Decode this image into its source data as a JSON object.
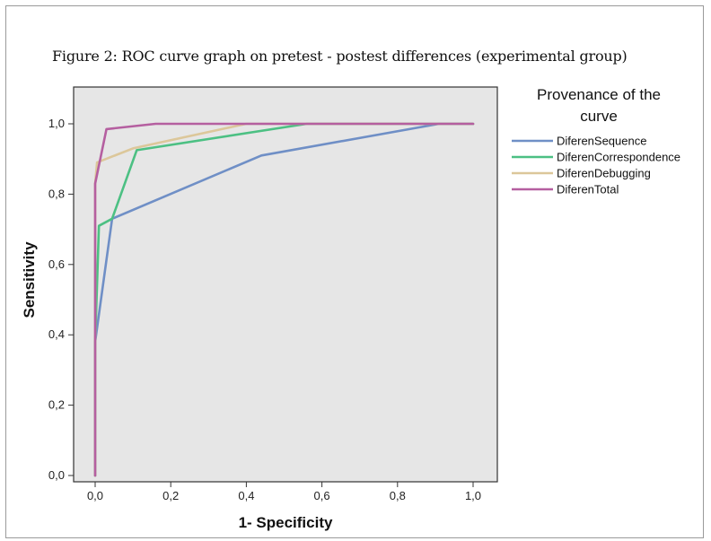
{
  "figure_title": "Figure 2: ROC curve graph on pretest - postest differences (experimental group)",
  "chart_data": {
    "type": "line",
    "title": "",
    "xlabel": "1- Specificity",
    "ylabel": "Sensitivity",
    "xlim": [
      0,
      1
    ],
    "ylim": [
      0,
      1
    ],
    "plot_background": "#e6e6e6",
    "grid": false,
    "x_ticks": [
      "0,0",
      "0,2",
      "0,4",
      "0,6",
      "0,8",
      "1,0"
    ],
    "y_ticks": [
      "0,0",
      "0,2",
      "0,4",
      "0,6",
      "0,8",
      "1,0"
    ],
    "legend": {
      "title_line1": "Provenance of the",
      "title_line2": "curve",
      "placement": "right"
    },
    "series": [
      {
        "name": "DiferenSequence",
        "color": "#6f8fc6",
        "points": [
          [
            0,
            0
          ],
          [
            0,
            0.38
          ],
          [
            0.045,
            0.73
          ],
          [
            0.44,
            0.91
          ],
          [
            0.91,
            1.0
          ],
          [
            1.0,
            1.0
          ]
        ]
      },
      {
        "name": "DiferenCorrespondence",
        "color": "#4cc083",
        "points": [
          [
            0,
            0
          ],
          [
            0,
            0.38
          ],
          [
            0.01,
            0.71
          ],
          [
            0.045,
            0.73
          ],
          [
            0.11,
            0.925
          ],
          [
            0.56,
            1.0
          ],
          [
            1.0,
            1.0
          ]
        ]
      },
      {
        "name": "DiferenDebugging",
        "color": "#dcc79a",
        "points": [
          [
            0,
            0
          ],
          [
            0,
            0.83
          ],
          [
            0.005,
            0.89
          ],
          [
            0.1,
            0.93
          ],
          [
            0.4,
            1.0
          ],
          [
            1.0,
            1.0
          ]
        ]
      },
      {
        "name": "DiferenTotal",
        "color": "#b55fa0",
        "points": [
          [
            0,
            0
          ],
          [
            0,
            0.83
          ],
          [
            0.03,
            0.985
          ],
          [
            0.16,
            1.0
          ],
          [
            1.0,
            1.0
          ]
        ]
      }
    ]
  }
}
